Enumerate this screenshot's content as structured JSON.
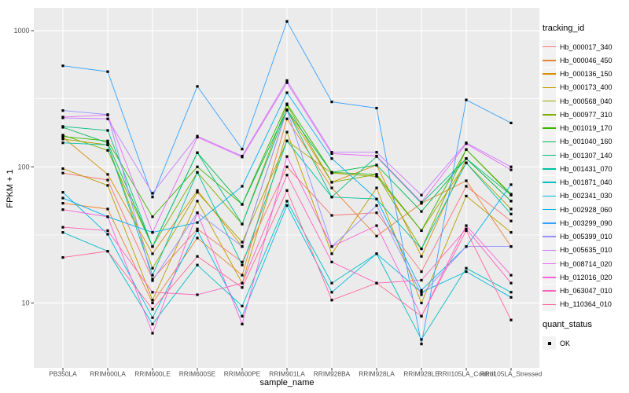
{
  "chart_data": {
    "type": "line",
    "title": "",
    "xlabel": "sample_name",
    "ylabel": "FPKM + 1",
    "y_scale": "log10",
    "ylim": [
      3.3,
      1450
    ],
    "y_ticks": [
      10,
      100,
      1000
    ],
    "y_minor": [
      31.62,
      316.2
    ],
    "grid": "on",
    "legend_position": "right",
    "categories": [
      "PB350LA",
      "RRIM600LA",
      "RRIM600LE",
      "RRIM600SE",
      "RRIM600PE",
      "RRIM901LA",
      "RRIM928BA",
      "RRIM928LA",
      "RRIM928LE",
      "RRII105LA_Control",
      "RRII105LA_Stressed"
    ],
    "series": [
      {
        "name": "Hb_000017_340",
        "color": "#F8766D",
        "values": [
          90,
          80,
          15,
          35,
          20,
          100,
          44,
          46,
          17,
          72,
          40
        ]
      },
      {
        "name": "Hb_000046_450",
        "color": "#EA8331",
        "values": [
          54,
          49,
          10,
          30,
          16,
          225,
          70,
          31,
          54,
          79,
          26
        ]
      },
      {
        "name": "Hb_000136_150",
        "color": "#D89000",
        "values": [
          165,
          88,
          23,
          67,
          26,
          260,
          77,
          103,
          22,
          115,
          56
        ]
      },
      {
        "name": "Hb_000173_400",
        "color": "#C09B00",
        "values": [
          97,
          73,
          10.5,
          56,
          14,
          180,
          23,
          70,
          10,
          61,
          33
        ]
      },
      {
        "name": "Hb_000568_040",
        "color": "#A3A500",
        "values": [
          160,
          145,
          18,
          65,
          28,
          155,
          90,
          85,
          34,
          107,
          49
        ]
      },
      {
        "name": "Hb_000977_310",
        "color": "#7CAE00",
        "values": [
          171,
          132,
          26,
          91,
          38,
          285,
          77,
          88,
          25,
          134,
          62
        ]
      },
      {
        "name": "Hb_001019_170",
        "color": "#39B600",
        "values": [
          167,
          155,
          43,
          100,
          53,
          290,
          91,
          88,
          34,
          134,
          63
        ]
      },
      {
        "name": "Hb_001040_160",
        "color": "#00BB4E",
        "values": [
          195,
          150,
          26,
          127,
          53,
          262,
          91,
          103,
          47,
          115,
          56
        ]
      },
      {
        "name": "Hb_001307_140",
        "color": "#00BF7D",
        "values": [
          198,
          185,
          26,
          127,
          38,
          262,
          60,
          119,
          54,
          115,
          62
        ]
      },
      {
        "name": "Hb_001431_070",
        "color": "#00C1A3",
        "values": [
          150,
          145,
          16,
          91,
          19,
          155,
          60,
          58,
          25,
          107,
          45
        ]
      },
      {
        "name": "Hb_001871_040",
        "color": "#00BFC4",
        "values": [
          33,
          24,
          7,
          19,
          9.5,
          56,
          14,
          23,
          5.4,
          18,
          12
        ]
      },
      {
        "name": "Hb_002341_030",
        "color": "#00BAE0",
        "values": [
          65,
          32,
          7.8,
          34,
          8,
          52,
          12,
          23,
          12,
          17,
          11
        ]
      },
      {
        "name": "Hb_002928_060",
        "color": "#00B0F6",
        "values": [
          59,
          43,
          33,
          39,
          72,
          350,
          115,
          58,
          12.4,
          26,
          74
        ]
      },
      {
        "name": "Hb_003299_090",
        "color": "#35A2FF",
        "values": [
          552,
          500,
          60,
          390,
          135,
          1170,
          300,
          270,
          5,
          310,
          210
        ]
      },
      {
        "name": "Hb_005399_010",
        "color": "#9590FF",
        "values": [
          259,
          242,
          14.6,
          46,
          26,
          262,
          26,
          52,
          11.5,
          26,
          26
        ]
      },
      {
        "name": "Hb_005635_010",
        "color": "#C77CFF",
        "values": [
          229,
          225,
          64,
          168,
          120,
          430,
          128,
          128,
          62,
          150,
          100
        ]
      },
      {
        "name": "Hb_008714_020",
        "color": "#E76BF3",
        "values": [
          232,
          240,
          33,
          165,
          118,
          415,
          125,
          120,
          55,
          148,
          95
        ]
      },
      {
        "name": "Hb_012016_020",
        "color": "#FA62DB",
        "values": [
          48.5,
          43,
          6,
          46,
          7,
          119,
          26,
          37,
          8,
          37,
          16
        ]
      },
      {
        "name": "Hb_063047_010",
        "color": "#FF62BC",
        "values": [
          36,
          34,
          12,
          11.5,
          14,
          87,
          20,
          14,
          14.7,
          35,
          14
        ]
      },
      {
        "name": "Hb_110364_010",
        "color": "#FF6A98",
        "values": [
          21.6,
          24,
          9,
          22,
          13,
          67,
          10.5,
          14,
          8,
          34,
          7.5
        ]
      }
    ],
    "legend": {
      "series_title": "tracking_id",
      "quant_title": "quant_status",
      "quant_label": "OK"
    }
  },
  "colors": {
    "panel_bg": "#EBEBEB",
    "grid_major": "#FFFFFF",
    "grid_minor": "#FFFFFF",
    "tick_mark": "#333333",
    "tick_label": "#4D4D4D",
    "point": "#000000",
    "legend_key_bg": "#F2F2F2"
  }
}
